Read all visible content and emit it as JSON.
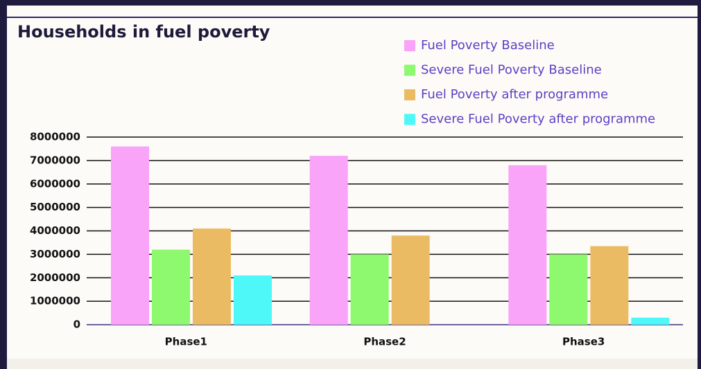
{
  "chart_data": {
    "type": "bar",
    "title": "Households in fuel poverty",
    "categories": [
      "Phase1",
      "Phase2",
      "Phase3"
    ],
    "series": [
      {
        "name": "Fuel Poverty Baseline",
        "color": "#f9a3f9",
        "values": [
          7600000,
          7200000,
          6800000
        ]
      },
      {
        "name": "Severe Fuel Poverty Baseline",
        "color": "#8ef86f",
        "values": [
          3200000,
          3000000,
          3000000
        ]
      },
      {
        "name": "Fuel Poverty after programme",
        "color": "#ebbb63",
        "values": [
          4100000,
          3800000,
          3350000
        ]
      },
      {
        "name": "Severe Fuel Poverty after programme",
        "color": "#4ef8f8",
        "values": [
          2100000,
          0,
          300000
        ]
      }
    ],
    "ylim": [
      0,
      8000000
    ],
    "yticks": [
      0,
      1000000,
      2000000,
      3000000,
      4000000,
      5000000,
      6000000,
      7000000,
      8000000
    ],
    "grid": true,
    "legend": "top-right"
  }
}
